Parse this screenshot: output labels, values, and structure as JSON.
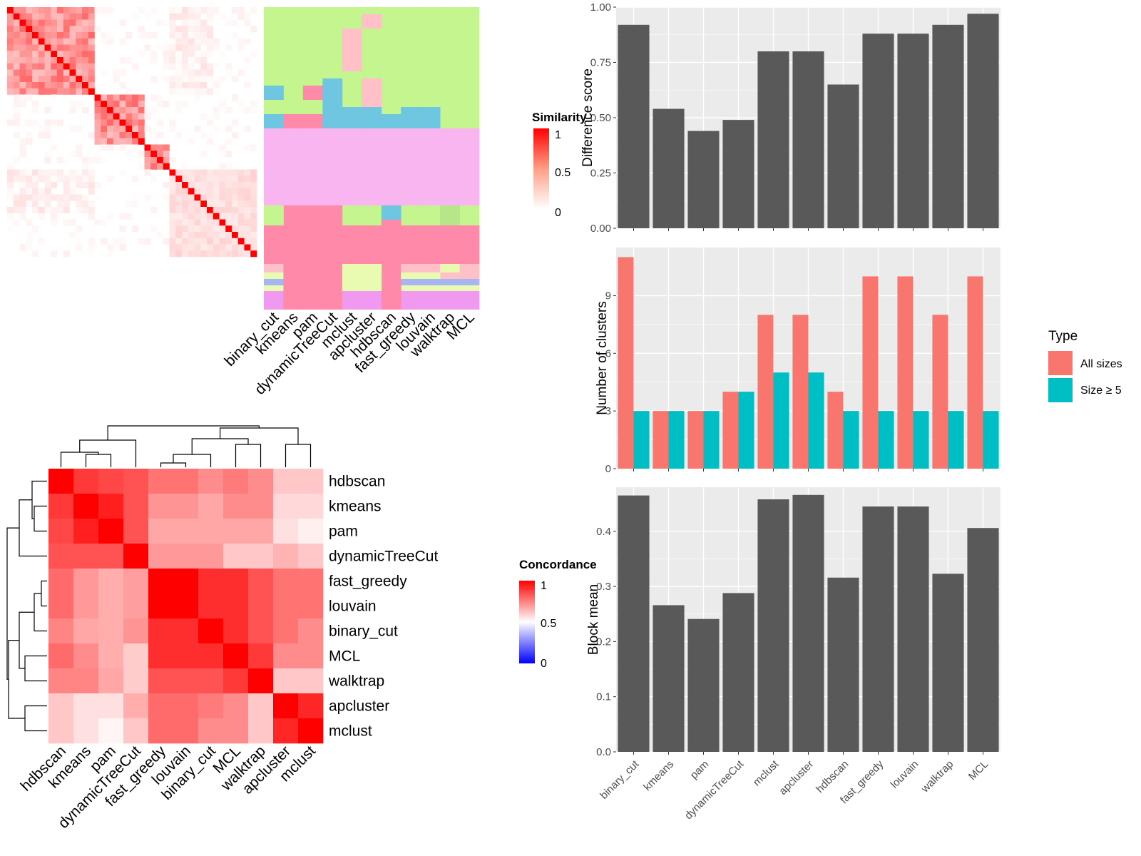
{
  "methods_heatmap_order": [
    "binary_cut",
    "kmeans",
    "pam",
    "dynamicTreeCut",
    "mclust",
    "apcluster",
    "hdbscan",
    "fast_greedy",
    "louvain",
    "walktrap",
    "MCL"
  ],
  "concordance_order": [
    "hdbscan",
    "kmeans",
    "pam",
    "dynamicTreeCut",
    "fast_greedy",
    "louvain",
    "binary_cut",
    "MCL",
    "walktrap",
    "apcluster",
    "mclust"
  ],
  "colors": {
    "bar_dark": "#595959",
    "all_sizes": "#F8766D",
    "size5": "#00BFC4",
    "panel_bg": "#EBEBEB",
    "heat_red": "#FF0000",
    "heat_blue": "#0000FF"
  },
  "legends": {
    "similarity": {
      "title": "Similarity",
      "ticks": [
        "1",
        "0.5",
        "0"
      ]
    },
    "concordance": {
      "title": "Concordance",
      "ticks": [
        "1",
        "0.5",
        "0"
      ]
    },
    "type": {
      "title": "Type",
      "items": [
        "All sizes",
        "Size ≥ 5"
      ]
    }
  },
  "chart_data": [
    {
      "type": "heatmap",
      "description_of_values": "term similarity matrix (0..1) with per-method cluster assignment annotation columns",
      "column_labels": [
        "binary_cut",
        "kmeans",
        "pam",
        "dynamicTreeCut",
        "mclust",
        "apcluster",
        "hdbscan",
        "fast_greedy",
        "louvain",
        "walktrap",
        "MCL"
      ],
      "legend": {
        "title": "Similarity",
        "range": [
          0,
          1
        ]
      }
    },
    {
      "type": "heatmap",
      "title": "",
      "row_labels": [
        "hdbscan",
        "kmeans",
        "pam",
        "dynamicTreeCut",
        "fast_greedy",
        "louvain",
        "binary_cut",
        "MCL",
        "walktrap",
        "apcluster",
        "mclust"
      ],
      "column_labels": [
        "hdbscan",
        "kmeans",
        "pam",
        "dynamicTreeCut",
        "fast_greedy",
        "louvain",
        "binary_cut",
        "MCL",
        "walktrap",
        "apcluster",
        "mclust"
      ],
      "values": [
        [
          1.0,
          0.78,
          0.72,
          0.68,
          0.55,
          0.55,
          0.45,
          0.52,
          0.45,
          0.22,
          0.22
        ],
        [
          0.78,
          1.0,
          0.88,
          0.68,
          0.42,
          0.42,
          0.35,
          0.45,
          0.45,
          0.15,
          0.15
        ],
        [
          0.72,
          0.88,
          1.0,
          0.68,
          0.35,
          0.35,
          0.35,
          0.35,
          0.35,
          0.12,
          0.06
        ],
        [
          0.68,
          0.68,
          0.68,
          1.0,
          0.4,
          0.4,
          0.4,
          0.22,
          0.22,
          0.3,
          0.22
        ],
        [
          0.58,
          0.4,
          0.32,
          0.38,
          1.0,
          1.0,
          0.82,
          0.82,
          0.68,
          0.55,
          0.55
        ],
        [
          0.58,
          0.4,
          0.32,
          0.38,
          1.0,
          1.0,
          0.82,
          0.82,
          0.68,
          0.55,
          0.55
        ],
        [
          0.48,
          0.35,
          0.32,
          0.42,
          0.82,
          0.82,
          1.0,
          0.82,
          0.68,
          0.55,
          0.45
        ],
        [
          0.58,
          0.45,
          0.32,
          0.2,
          0.82,
          0.82,
          0.82,
          1.0,
          0.78,
          0.45,
          0.45
        ],
        [
          0.48,
          0.48,
          0.35,
          0.2,
          0.68,
          0.68,
          0.68,
          0.78,
          1.0,
          0.22,
          0.22
        ],
        [
          0.22,
          0.12,
          0.12,
          0.32,
          0.58,
          0.58,
          0.52,
          0.45,
          0.22,
          1.0,
          0.85
        ],
        [
          0.22,
          0.12,
          0.04,
          0.22,
          0.58,
          0.58,
          0.45,
          0.45,
          0.22,
          0.85,
          1.0
        ]
      ],
      "legend": {
        "title": "Concordance",
        "range": [
          0,
          1
        ],
        "midpoint": 0.5
      }
    },
    {
      "type": "bar",
      "categories": [
        "binary_cut",
        "kmeans",
        "pam",
        "dynamicTreeCut",
        "mclust",
        "apcluster",
        "hdbscan",
        "fast_greedy",
        "louvain",
        "walktrap",
        "MCL"
      ],
      "values": [
        0.92,
        0.54,
        0.44,
        0.49,
        0.8,
        0.8,
        0.65,
        0.88,
        0.88,
        0.92,
        0.97
      ],
      "ylabel": "Difference score",
      "ylim": [
        0,
        1.0
      ],
      "yticks": [
        "0.00",
        "0.25",
        "0.50",
        "0.75",
        "1.00"
      ]
    },
    {
      "type": "bar",
      "categories": [
        "binary_cut",
        "kmeans",
        "pam",
        "dynamicTreeCut",
        "mclust",
        "apcluster",
        "hdbscan",
        "fast_greedy",
        "louvain",
        "walktrap",
        "MCL"
      ],
      "series": [
        {
          "name": "All sizes",
          "values": [
            11,
            3,
            3,
            4,
            8,
            8,
            4,
            10,
            10,
            8,
            10
          ]
        },
        {
          "name": "Size ≥ 5",
          "values": [
            3,
            3,
            3,
            4,
            5,
            5,
            3,
            3,
            3,
            3,
            3
          ]
        }
      ],
      "ylabel": "Number of clusters",
      "ylim": [
        0,
        11.5
      ],
      "yticks": [
        "0",
        "3",
        "6",
        "9"
      ],
      "legend": {
        "title": "Type",
        "position": "right"
      }
    },
    {
      "type": "bar",
      "categories": [
        "binary_cut",
        "kmeans",
        "pam",
        "dynamicTreeCut",
        "mclust",
        "apcluster",
        "hdbscan",
        "fast_greedy",
        "louvain",
        "walktrap",
        "MCL"
      ],
      "values": [
        0.465,
        0.266,
        0.241,
        0.288,
        0.458,
        0.466,
        0.316,
        0.445,
        0.445,
        0.323,
        0.406
      ],
      "ylabel": "Block mean",
      "ylim": [
        0,
        0.48
      ],
      "yticks": [
        "0.0",
        "0.1",
        "0.2",
        "0.3",
        "0.4"
      ]
    }
  ]
}
